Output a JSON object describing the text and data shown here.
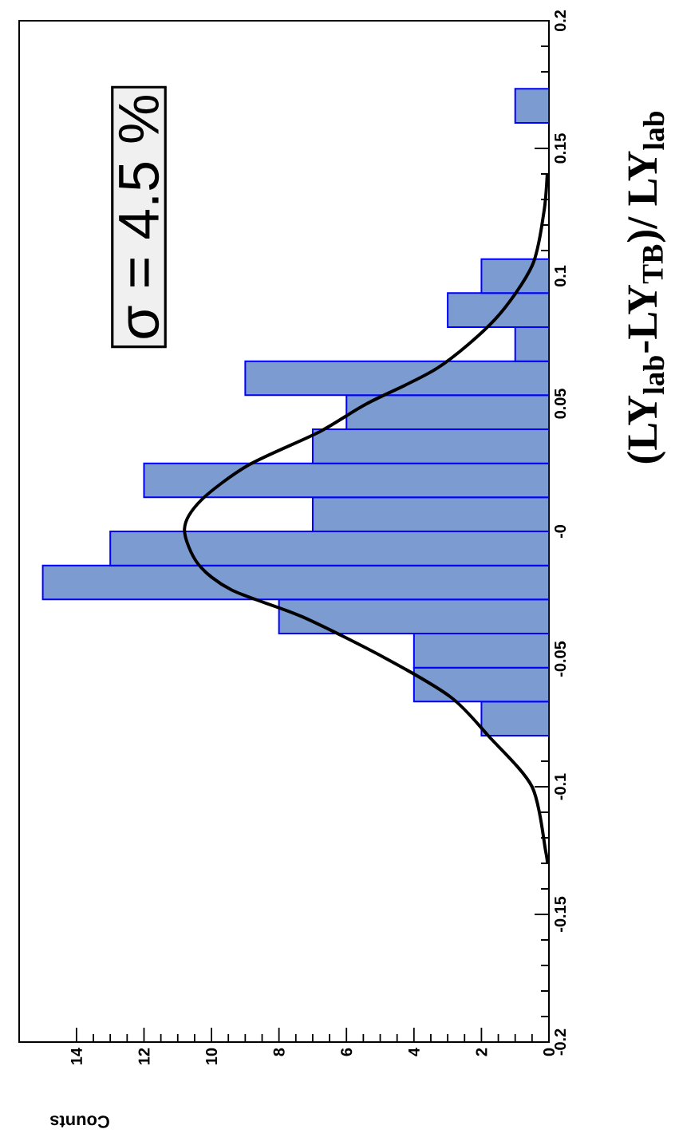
{
  "chart_data": {
    "type": "histogram",
    "orientation": "horizontal",
    "xlabel": "Counts",
    "ylabel": "(LY$_{lab}$-LY$_{TB}$)/ LY$_{lab}$",
    "annotations": [
      "σ = 4.5 %"
    ],
    "ylim": [
      -0.2,
      0.2
    ],
    "xlim": [
      15.7,
      0
    ],
    "yticks": [
      -0.2,
      -0.15,
      -0.1,
      -0.05,
      {
        "value": 0,
        "label": "-0"
      },
      0.05,
      0.1,
      0.15,
      0.2
    ],
    "xticks": [
      0,
      2,
      4,
      6,
      8,
      10,
      12,
      14
    ],
    "grid": false,
    "series": [
      {
        "color": "#7b9bd1",
        "bins": [
          -0.2,
          -0.18667,
          -0.17333,
          -0.16,
          -0.14667,
          -0.13333,
          -0.12,
          -0.10667,
          -0.09333,
          -0.08,
          -0.06667,
          -0.05333,
          -0.04,
          -0.02667,
          -0.01333,
          0,
          0.01333,
          0.02667,
          0.04,
          0.05333,
          0.06667,
          0.08,
          0.09333,
          0.10667,
          0.12,
          0.13333,
          0.14667,
          0.16,
          0.17333,
          0.18667,
          0.2
        ],
        "values": [
          0,
          0,
          0,
          0,
          0,
          0,
          0,
          0,
          0,
          2,
          4,
          4,
          8,
          15,
          13,
          7,
          12,
          7,
          6,
          9,
          1,
          3,
          2,
          0,
          0,
          0,
          0,
          1,
          0,
          0
        ]
      },
      {
        "type": "line",
        "color": "#000000",
        "x": [
          -0.13,
          -0.125,
          -0.1,
          -0.08,
          -0.065,
          -0.05,
          -0.0335,
          -0.023,
          -0.0127,
          0.001,
          0.0123,
          0.026,
          0.039,
          0.05,
          0.064,
          0.083,
          0.104,
          0.125,
          0.14
        ],
        "values": [
          0.05,
          0.1,
          0.5,
          1.8,
          2.9,
          4.8,
          7.3,
          9.4,
          10.4,
          10.8,
          10.3,
          8.9,
          6.8,
          5.4,
          3.3,
          1.6,
          0.5,
          0.15,
          0.05
        ]
      }
    ]
  }
}
